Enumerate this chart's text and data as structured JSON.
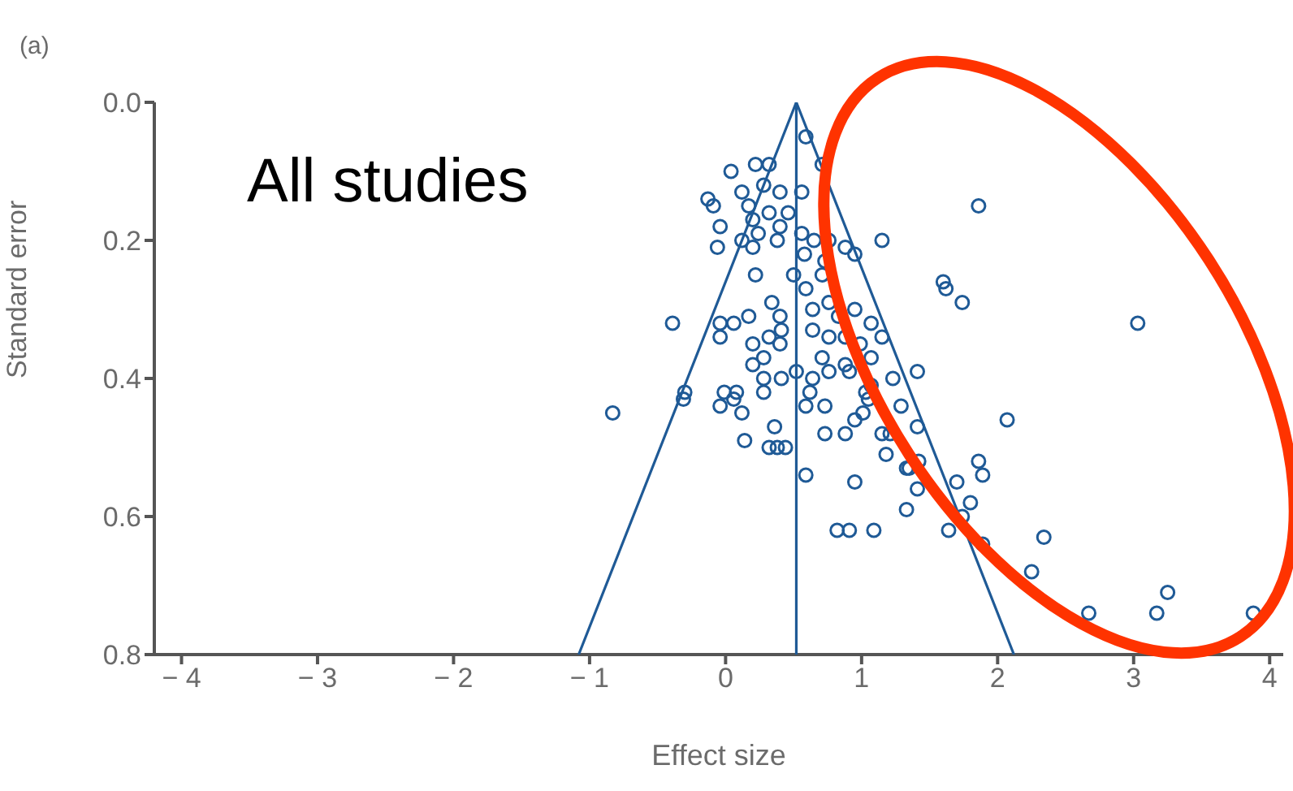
{
  "chart_data": {
    "type": "scatter",
    "xlabel": "Effect size",
    "ylabel": "Standard error",
    "annotations": [
      "(a)",
      "All studies"
    ],
    "xlim": [
      -4.2,
      4.1
    ],
    "xticks": [
      {
        "value": -4,
        "label": "− 4"
      },
      {
        "value": -3,
        "label": "− 3"
      },
      {
        "value": -2,
        "label": "− 2"
      },
      {
        "value": -1,
        "label": "− 1"
      },
      0,
      1,
      2,
      3,
      4
    ],
    "ylim": [
      0.8,
      0
    ],
    "yticks": [
      {
        "value": 0,
        "label": "0.0"
      },
      0.2,
      0.4,
      0.6,
      {
        "value": 0.8,
        "label": "0.8"
      }
    ],
    "grid": false,
    "legend": false,
    "series": [
      {
        "type": "scatter",
        "marker": "circle",
        "color": "#1f5a96",
        "x": [
          0.59,
          0.71,
          0.32,
          0.22,
          0.04,
          -0.13,
          -0.09,
          -0.04,
          -0.06,
          0.12,
          0.28,
          0.4,
          0.56,
          0.17,
          0.32,
          0.2,
          0.46,
          0.4,
          0.24,
          0.12,
          0.2,
          0.38,
          0.56,
          0.65,
          0.76,
          0.88,
          0.95,
          1.15,
          0.58,
          0.73,
          0.22,
          0.5,
          0.71,
          0.59,
          0.34,
          0.4,
          0.64,
          0.76,
          0.83,
          0.95,
          1.07,
          -0.39,
          -0.04,
          0.06,
          0.17,
          -0.04,
          0.2,
          0.32,
          0.41,
          0.4,
          0.64,
          0.76,
          0.88,
          0.99,
          1.15,
          0.71,
          0.88,
          1.07,
          0.28,
          0.41,
          0.28,
          0.2,
          0.52,
          0.64,
          0.76,
          0.91,
          1.07,
          1.23,
          -0.3,
          -0.01,
          0.08,
          0.62,
          1.03,
          -0.83,
          -0.31,
          -0.04,
          0.06,
          0.12,
          0.28,
          0.36,
          0.14,
          0.32,
          0.38,
          0.44,
          0.59,
          0.73,
          0.59,
          0.73,
          0.88,
          0.95,
          1.05,
          1.01,
          1.15,
          1.21,
          1.29,
          1.18,
          1.33,
          0.95,
          1.33,
          0.82,
          0.91,
          1.09,
          1.86,
          1.6,
          1.74,
          3.03,
          2.07,
          1.41,
          1.35,
          1.42,
          1.41,
          1.86,
          1.89,
          1.7,
          1.8,
          1.74,
          1.64,
          1.89,
          2.34,
          2.25,
          2.67,
          3.17,
          3.25,
          3.88,
          1.41,
          1.62
        ],
        "values": [
          0.05,
          0.09,
          0.09,
          0.09,
          0.1,
          0.14,
          0.15,
          0.18,
          0.21,
          0.13,
          0.12,
          0.13,
          0.13,
          0.15,
          0.16,
          0.17,
          0.16,
          0.18,
          0.19,
          0.2,
          0.21,
          0.2,
          0.19,
          0.2,
          0.2,
          0.21,
          0.22,
          0.2,
          0.22,
          0.23,
          0.25,
          0.25,
          0.25,
          0.27,
          0.29,
          0.31,
          0.3,
          0.29,
          0.31,
          0.3,
          0.32,
          0.32,
          0.32,
          0.32,
          0.31,
          0.34,
          0.35,
          0.34,
          0.33,
          0.35,
          0.33,
          0.34,
          0.34,
          0.35,
          0.34,
          0.37,
          0.38,
          0.37,
          0.37,
          0.4,
          0.4,
          0.38,
          0.39,
          0.4,
          0.39,
          0.39,
          0.41,
          0.4,
          0.42,
          0.42,
          0.42,
          0.42,
          0.42,
          0.45,
          0.43,
          0.44,
          0.43,
          0.45,
          0.42,
          0.47,
          0.49,
          0.5,
          0.5,
          0.5,
          0.44,
          0.44,
          0.54,
          0.48,
          0.48,
          0.46,
          0.43,
          0.45,
          0.48,
          0.48,
          0.44,
          0.51,
          0.53,
          0.55,
          0.59,
          0.62,
          0.62,
          0.62,
          0.15,
          0.26,
          0.29,
          0.32,
          0.46,
          0.47,
          0.53,
          0.52,
          0.56,
          0.52,
          0.54,
          0.55,
          0.58,
          0.6,
          0.62,
          0.64,
          0.63,
          0.68,
          0.74,
          0.74,
          0.71,
          0.74,
          0.39,
          0.27
        ]
      },
      {
        "type": "line",
        "marker": "none",
        "line_style": "solid",
        "color": "#1f5a96",
        "x": [
          -1.08,
          0.52,
          2.12
        ],
        "values": [
          0.8,
          0,
          0.8
        ]
      },
      {
        "type": "line",
        "marker": "none",
        "line_style": "solid",
        "color": "#1f5a96",
        "x": [
          0.52,
          0.52
        ],
        "values": [
          0,
          0.8
        ]
      }
    ]
  }
}
